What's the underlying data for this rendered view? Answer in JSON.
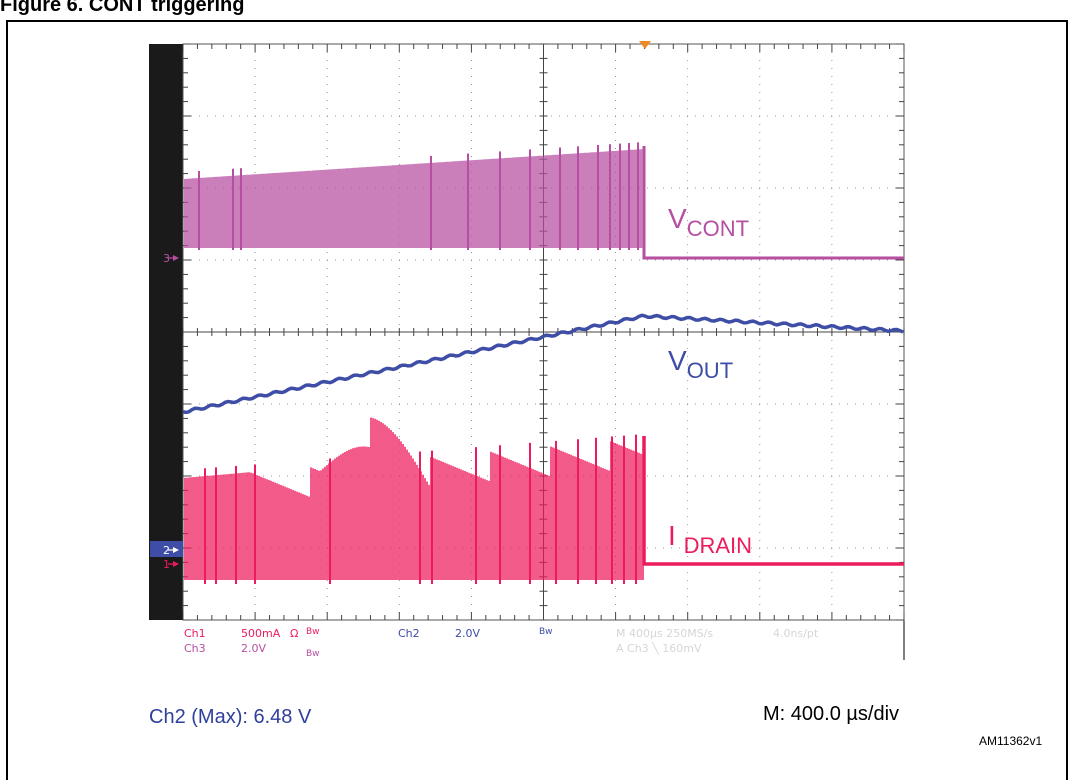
{
  "figure_title": "Figure 6. CONT triggering",
  "chart_data": {
    "type": "line",
    "grid": true,
    "x": {
      "divisions": 10,
      "time_per_div": "400.0 µs/div",
      "range_us": [
        0,
        4000
      ]
    },
    "y": {
      "divisions": 8
    },
    "series": [
      {
        "name": "V",
        "subscript": "CONT",
        "color": "#b64ea1",
        "channel": "Ch3",
        "type": "pulsed-burst",
        "ground_marker": "3"
      },
      {
        "name": "V",
        "subscript": "OUT",
        "color": "#3e4da5",
        "channel": "Ch2",
        "type": "ramp",
        "ground_marker": "2"
      },
      {
        "name": "I ",
        "subscript": "DRAIN",
        "color": "#ec1c5c",
        "channel": "Ch1",
        "type": "pulsed-burst",
        "ground_marker": "1"
      }
    ],
    "settings": {
      "row1": {
        "ch": "Ch1",
        "scale": "500mA",
        "ohm": "Ω",
        "bw": "Bw",
        "ch2": "Ch2",
        "ch2_scale": "2.0V",
        "bw2": "Bw",
        "timebase": "M 400µs 250MS/s",
        "pts": "4.0ns/pt"
      },
      "row2": {
        "ch": "Ch3",
        "scale": "2.0V",
        "bw": "Bw",
        "trigger": "A  Ch3  ╲  160mV"
      }
    }
  },
  "annotations": {
    "ch2_max": "Ch2 (Max): 6.48 V",
    "timebase": "M: 400.0 µs/div",
    "figure_id": "AM11362v1"
  },
  "colors": {
    "vcont": "#b64ea1",
    "vout": "#3e4da5",
    "idrain": "#ec1c5c",
    "grid": "#7a7a7a",
    "sidebar": "#1a1a1a",
    "marker2": "#3e4da5"
  }
}
